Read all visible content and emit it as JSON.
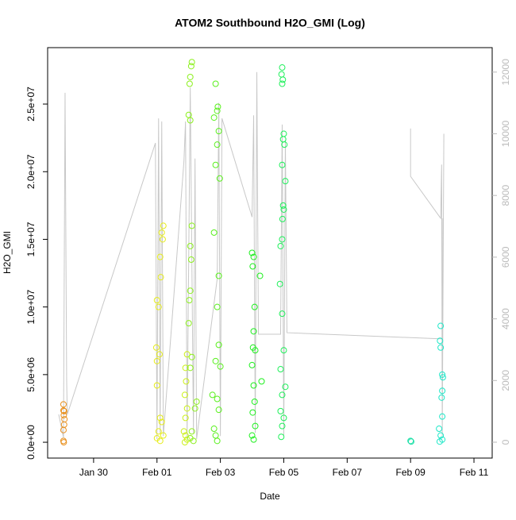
{
  "chart_data": {
    "type": "scatter",
    "title": "ATOM2 Southbound H2O_GMI (Log)",
    "xlabel": "Date",
    "ylabel": "H2O_GMI",
    "xlim": [
      28.55,
      42.575
    ],
    "xticks": [
      {
        "value": 30,
        "label": "Jan 30"
      },
      {
        "value": 32,
        "label": "Feb 01"
      },
      {
        "value": 34,
        "label": "Feb 03"
      },
      {
        "value": 36,
        "label": "Feb 05"
      },
      {
        "value": 38,
        "label": "Feb 07"
      },
      {
        "value": 40,
        "label": "Feb 09"
      },
      {
        "value": 42,
        "label": "Feb 11"
      }
    ],
    "ylim": [
      -1170000,
      29170000
    ],
    "yticks": [
      {
        "value": 0,
        "label": "0.0e+00"
      },
      {
        "value": 5000000,
        "label": "5.0e+06"
      },
      {
        "value": 10000000,
        "label": "1.0e+07"
      },
      {
        "value": 15000000,
        "label": "1.5e+07"
      },
      {
        "value": 20000000,
        "label": "2.0e+07"
      },
      {
        "value": 25000000,
        "label": "2.5e+07"
      }
    ],
    "y2lim": [
      -515,
      12793
    ],
    "y2ticks": [
      0,
      2000,
      4000,
      6000,
      8000,
      10000,
      12000
    ],
    "series": [
      {
        "type": "line",
        "axis": "y2",
        "color": "#c8c8c8",
        "x": [
          28.9,
          29.05,
          29.1,
          29.15,
          29.17,
          31.95,
          32.0,
          32.05,
          32.1,
          32.15,
          32.2,
          32.85,
          32.9,
          32.95,
          33.05,
          33.15,
          33.2,
          33.25,
          33.9,
          33.95,
          34.0,
          34.05,
          35.0,
          35.05,
          35.1,
          35.15,
          35.2,
          35.9,
          35.95,
          36.0,
          36.05,
          36.1,
          41.0,
          41.02
        ],
        "values": [
          900,
          150,
          11330,
          2000,
          900,
          9700,
          100,
          10500,
          300,
          10400,
          200,
          9100,
          10400,
          200,
          11500,
          300,
          9200,
          100,
          5300,
          11000,
          200,
          10500,
          7300,
          10600,
          300,
          12000,
          3500,
          3500,
          10300,
          200,
          9800,
          3550,
          3350,
          7260
        ]
      },
      {
        "type": "line",
        "axis": "y2",
        "color": "#c8c8c8",
        "x": [
          40.0,
          40.0,
          40.95,
          40.98,
          41.0,
          41.05
        ],
        "values": [
          10170,
          8620,
          7260,
          9000,
          200,
          10000
        ]
      },
      {
        "color": "#e8901e",
        "x": [
          29.05,
          29.05,
          29.07,
          29.06,
          29.08,
          29.07,
          29.05,
          29.05,
          29.06
        ],
        "values": [
          2800000,
          2350000,
          2300000,
          2000000,
          1700000,
          1300000,
          900000,
          100000,
          0
        ]
      },
      {
        "color": "#e6ec1a",
        "x": [
          32.2,
          32.15,
          32.18,
          32.1,
          32.12,
          32.0,
          32.05,
          31.98,
          32.08,
          32.0,
          32.0,
          32.1,
          32.15,
          32.05,
          32.2,
          32.0,
          32.1
        ],
        "values": [
          16000000,
          15500000,
          15000000,
          13700000,
          12200000,
          10500000,
          10000000,
          7000000,
          6500000,
          6000000,
          4200000,
          1800000,
          1500000,
          800000,
          500000,
          300000,
          100000
        ]
      },
      {
        "color": "#ccf01a",
        "x": [
          32.95,
          32.9,
          32.92,
          32.88,
          32.95,
          32.9,
          32.85,
          32.9,
          32.95,
          32.88
        ],
        "values": [
          6500000,
          5500000,
          4500000,
          3500000,
          2500000,
          1800000,
          800000,
          500000,
          200000,
          0
        ]
      },
      {
        "color": "#8cf01e",
        "x": [
          33.1,
          33.08,
          33.05,
          33.03,
          33.0,
          33.05,
          33.1,
          33.05,
          33.08,
          33.05,
          33.02,
          33.0,
          33.1,
          33.05,
          33.25,
          33.2,
          33.1,
          33.05,
          33.15
        ],
        "values": [
          28100000,
          27800000,
          27000000,
          26500000,
          24200000,
          23800000,
          16000000,
          14500000,
          13500000,
          11200000,
          10500000,
          8800000,
          6300000,
          5500000,
          3000000,
          2500000,
          800000,
          300000,
          100000
        ]
      },
      {
        "color": "#5af01e",
        "x": [
          33.85,
          33.92,
          33.9,
          33.8,
          33.95,
          33.9,
          33.85,
          33.98,
          33.8,
          33.95,
          33.9,
          33.95,
          33.85,
          34.0,
          33.75,
          33.9,
          33.95,
          33.8,
          33.85,
          33.9
        ],
        "values": [
          26500000,
          24800000,
          24500000,
          24000000,
          23000000,
          22000000,
          20500000,
          19500000,
          15500000,
          12300000,
          10000000,
          7200000,
          6000000,
          5600000,
          3500000,
          3200000,
          2400000,
          1000000,
          500000,
          100000
        ]
      },
      {
        "color": "#1ef01e",
        "x": [
          35.0,
          35.05,
          35.02,
          35.08,
          35.05,
          35.03,
          35.1,
          35.0,
          35.05,
          35.08,
          35.02,
          35.1,
          35.0,
          35.05,
          35.25,
          35.3
        ],
        "values": [
          14000000,
          13700000,
          13000000,
          10000000,
          8200000,
          7000000,
          6800000,
          5700000,
          4200000,
          3000000,
          2200000,
          1200000,
          500000,
          200000,
          12300000,
          4500000
        ]
      },
      {
        "color": "#1ef05a",
        "x": [
          35.95,
          35.93,
          35.97,
          35.95,
          36.0,
          35.98,
          36.02,
          35.95,
          36.05,
          35.98,
          36.0,
          35.96,
          35.95,
          35.9,
          35.88,
          35.95,
          36.0,
          35.9,
          36.05,
          35.95,
          35.9,
          36.0,
          35.95,
          35.92
        ],
        "values": [
          27700000,
          27200000,
          26800000,
          26500000,
          22800000,
          22400000,
          22000000,
          20500000,
          19300000,
          17500000,
          17200000,
          16500000,
          15000000,
          14500000,
          11700000,
          9500000,
          6800000,
          5400000,
          4100000,
          3500000,
          2300000,
          1800000,
          1200000,
          400000
        ]
      },
      {
        "color": "#1ee0a8",
        "x": [
          40.0,
          40.02
        ],
        "values": [
          100000,
          50000
        ]
      },
      {
        "color": "#1ee8c8",
        "x": [
          40.95,
          40.93,
          40.95,
          41.0,
          41.02,
          41.0,
          40.98,
          41.0,
          40.9,
          40.95,
          41.0,
          40.92
        ],
        "values": [
          8600000,
          7500000,
          7000000,
          5000000,
          4800000,
          3800000,
          3300000,
          1900000,
          1000000,
          500000,
          200000,
          50000
        ]
      }
    ]
  }
}
